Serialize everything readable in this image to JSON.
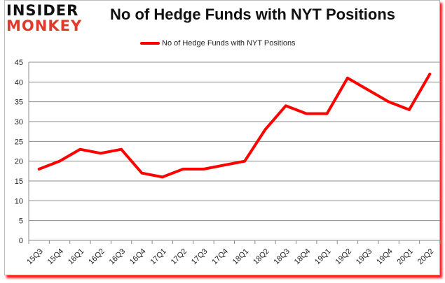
{
  "logo": {
    "line1": "INSIDER",
    "line2": "MONKEY"
  },
  "chart_data": {
    "type": "line",
    "title": "No of Hedge Funds with NYT Positions",
    "xlabel": "",
    "ylabel": "",
    "ylim": [
      0,
      45
    ],
    "yticks": [
      0,
      5,
      10,
      15,
      20,
      25,
      30,
      35,
      40,
      45
    ],
    "grid": true,
    "legend_position": "top",
    "categories": [
      "15Q3",
      "15Q4",
      "16Q1",
      "16Q2",
      "16Q3",
      "16Q4",
      "17Q1",
      "17Q2",
      "17Q3",
      "17Q4",
      "18Q1",
      "18Q2",
      "18Q3",
      "18Q4",
      "19Q1",
      "19Q2",
      "19Q3",
      "19Q4",
      "20Q1",
      "20Q2"
    ],
    "series": [
      {
        "name": "No of Hedge Funds with NYT Positions",
        "color": "#ff0000",
        "values": [
          18,
          20,
          23,
          22,
          23,
          17,
          16,
          18,
          18,
          19,
          20,
          28,
          34,
          32,
          32,
          41,
          38,
          35,
          33,
          42
        ]
      }
    ]
  }
}
